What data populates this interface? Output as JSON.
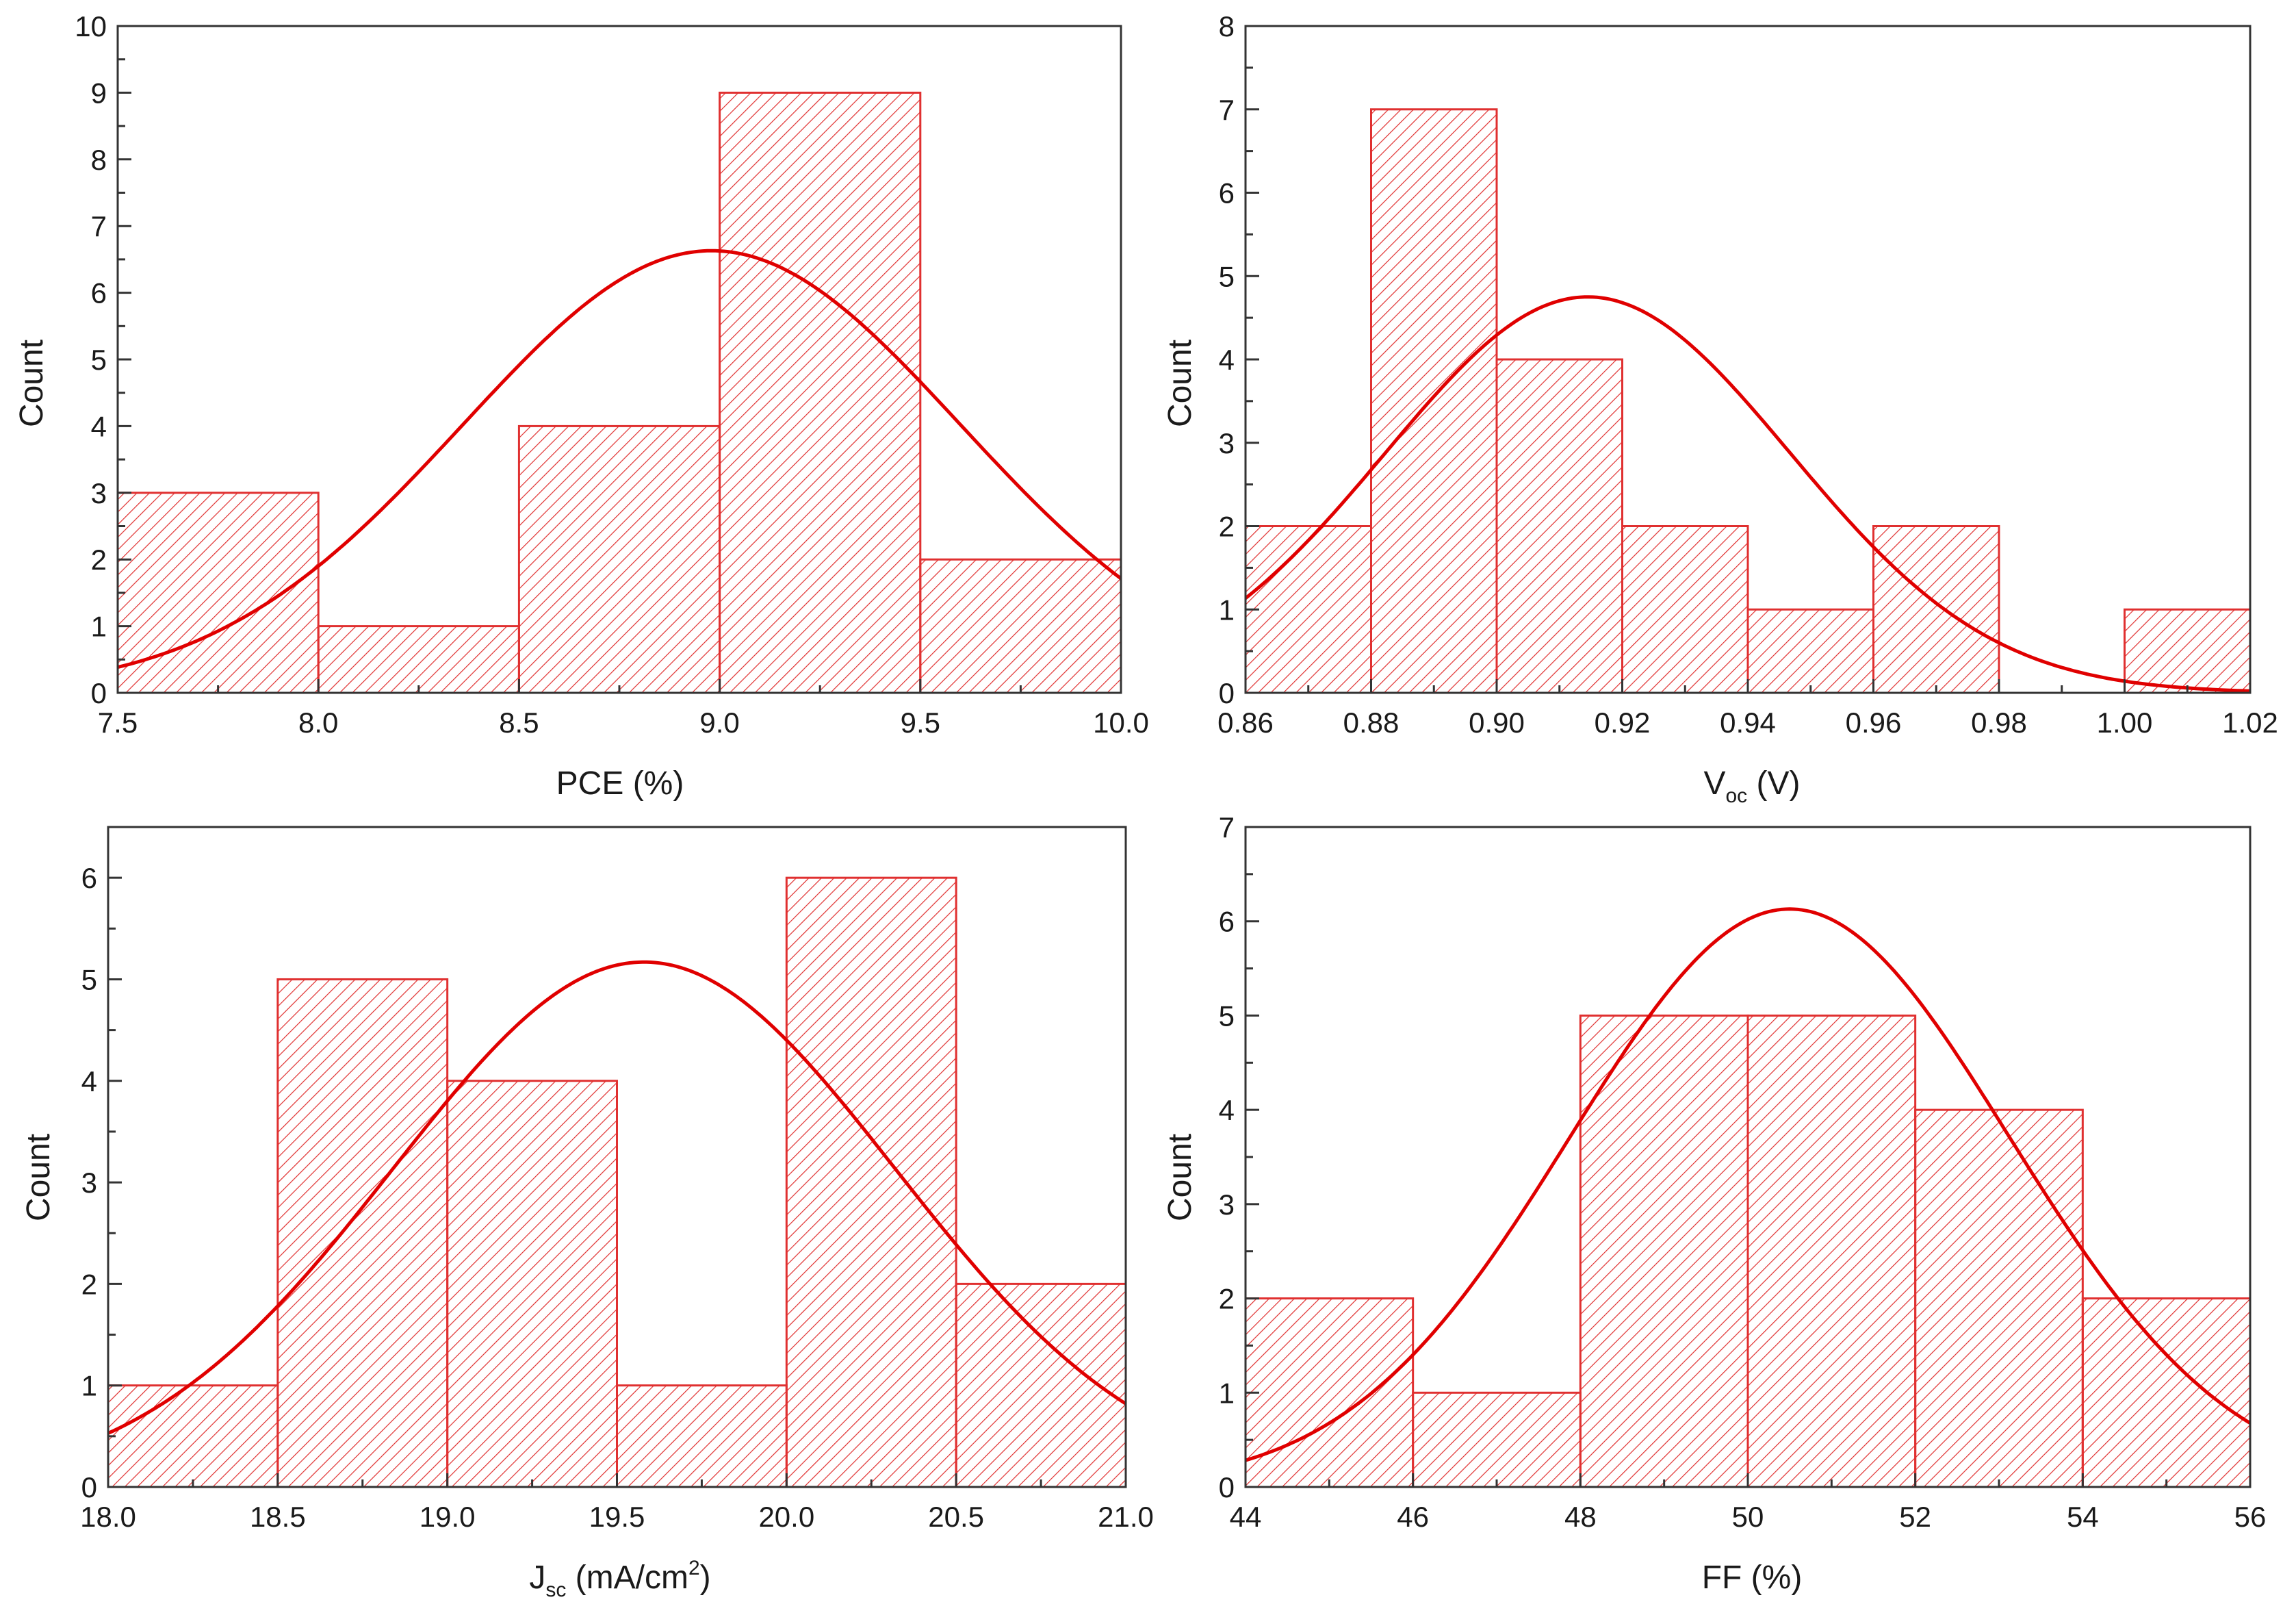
{
  "colors": {
    "bar": "#e03030",
    "hatch": "#e03030",
    "curve": "#e00000",
    "axis": "#333333"
  },
  "chart_data": [
    {
      "id": "pce",
      "type": "bar",
      "title": "",
      "xlabel": "PCE (%)",
      "xlabel_main": "PCE (%)",
      "xlabel_sub": "",
      "xlabel_tail": "",
      "xlabel_sup": "",
      "xlabel_end": "",
      "ylabel": "Count",
      "xlim": [
        7.5,
        10.0
      ],
      "ylim": [
        0,
        10
      ],
      "xticks": [
        7.5,
        8.0,
        8.5,
        9.0,
        9.5,
        10.0
      ],
      "xtick_labels": [
        "7.5",
        "8.0",
        "8.5",
        "9.0",
        "9.5",
        "10.0"
      ],
      "yticks": [
        0,
        1,
        2,
        3,
        4,
        5,
        6,
        7,
        8,
        9,
        10
      ],
      "ytick_labels": [
        "0",
        "1",
        "2",
        "3",
        "4",
        "5",
        "6",
        "7",
        "8",
        "9",
        "10"
      ],
      "bins": [
        [
          7.5,
          8.0
        ],
        [
          8.0,
          8.5
        ],
        [
          8.5,
          9.0
        ],
        [
          9.0,
          9.5
        ],
        [
          9.5,
          10.0
        ]
      ],
      "values": [
        3,
        1,
        4,
        9,
        2
      ],
      "fit": {
        "type": "normal",
        "mean": 8.98,
        "peak": 6.63,
        "sigma": 0.62
      }
    },
    {
      "id": "voc",
      "type": "bar",
      "title": "",
      "xlabel": "Voc (V)",
      "xlabel_main": "V",
      "xlabel_sub": "oc",
      "xlabel_tail": " (V)",
      "xlabel_sup": "",
      "xlabel_end": "",
      "ylabel": "Count",
      "xlim": [
        0.86,
        1.02
      ],
      "ylim": [
        0,
        8
      ],
      "xticks": [
        0.86,
        0.88,
        0.9,
        0.92,
        0.94,
        0.96,
        0.98,
        1.0,
        1.02
      ],
      "xtick_labels": [
        "0.86",
        "0.88",
        "0.90",
        "0.92",
        "0.94",
        "0.96",
        "0.98",
        "1.00",
        "1.02"
      ],
      "yticks": [
        0,
        1,
        2,
        3,
        4,
        5,
        6,
        7,
        8
      ],
      "ytick_labels": [
        "0",
        "1",
        "2",
        "3",
        "4",
        "5",
        "6",
        "7",
        "8"
      ],
      "bins": [
        [
          0.86,
          0.88
        ],
        [
          0.88,
          0.9
        ],
        [
          0.9,
          0.92
        ],
        [
          0.92,
          0.94
        ],
        [
          0.94,
          0.96
        ],
        [
          0.96,
          0.98
        ],
        [
          0.98,
          1.0
        ],
        [
          1.0,
          1.02
        ]
      ],
      "values": [
        2,
        7,
        4,
        2,
        1,
        2,
        0,
        1
      ],
      "fit": {
        "type": "normal",
        "mean": 0.9145,
        "peak": 4.75,
        "sigma": 0.0322
      }
    },
    {
      "id": "jsc",
      "type": "bar",
      "title": "",
      "xlabel": "Jsc (mA/cm2)",
      "xlabel_main": "J",
      "xlabel_sub": "sc",
      "xlabel_tail": " (mA/cm",
      "xlabel_sup": "2",
      "xlabel_end": ")",
      "ylabel": "Count",
      "xlim": [
        18.0,
        21.0
      ],
      "ylim": [
        0,
        6.5
      ],
      "xticks": [
        18.0,
        18.5,
        19.0,
        19.5,
        20.0,
        20.5,
        21.0
      ],
      "xtick_labels": [
        "18.0",
        "18.5",
        "19.0",
        "19.5",
        "20.0",
        "20.5",
        "21.0"
      ],
      "yticks": [
        0,
        1,
        2,
        3,
        4,
        5,
        6
      ],
      "ytick_labels": [
        "0",
        "1",
        "2",
        "3",
        "4",
        "5",
        "6"
      ],
      "bins": [
        [
          18.0,
          18.5
        ],
        [
          18.5,
          19.0
        ],
        [
          19.0,
          19.5
        ],
        [
          19.5,
          20.0
        ],
        [
          20.0,
          20.5
        ],
        [
          20.5,
          21.0
        ]
      ],
      "values": [
        1,
        5,
        4,
        1,
        6,
        2
      ],
      "fit": {
        "type": "normal",
        "mean": 19.58,
        "peak": 5.17,
        "sigma": 0.74
      }
    },
    {
      "id": "ff",
      "type": "bar",
      "title": "",
      "xlabel": "FF (%)",
      "xlabel_main": "FF (%)",
      "xlabel_sub": "",
      "xlabel_tail": "",
      "xlabel_sup": "",
      "xlabel_end": "",
      "ylabel": "Count",
      "xlim": [
        44,
        56
      ],
      "ylim": [
        0,
        7
      ],
      "xticks": [
        44,
        46,
        48,
        50,
        52,
        54,
        56
      ],
      "xtick_labels": [
        "44",
        "46",
        "48",
        "50",
        "52",
        "54",
        "56"
      ],
      "yticks": [
        0,
        1,
        2,
        3,
        4,
        5,
        6,
        7
      ],
      "ytick_labels": [
        "0",
        "1",
        "2",
        "3",
        "4",
        "5",
        "6",
        "7"
      ],
      "bins": [
        [
          44,
          46
        ],
        [
          46,
          48
        ],
        [
          48,
          50
        ],
        [
          50,
          52
        ],
        [
          52,
          54
        ],
        [
          54,
          56
        ]
      ],
      "values": [
        2,
        1,
        5,
        5,
        4,
        2
      ],
      "fit": {
        "type": "normal",
        "mean": 50.5,
        "peak": 6.13,
        "sigma": 2.62
      }
    }
  ]
}
